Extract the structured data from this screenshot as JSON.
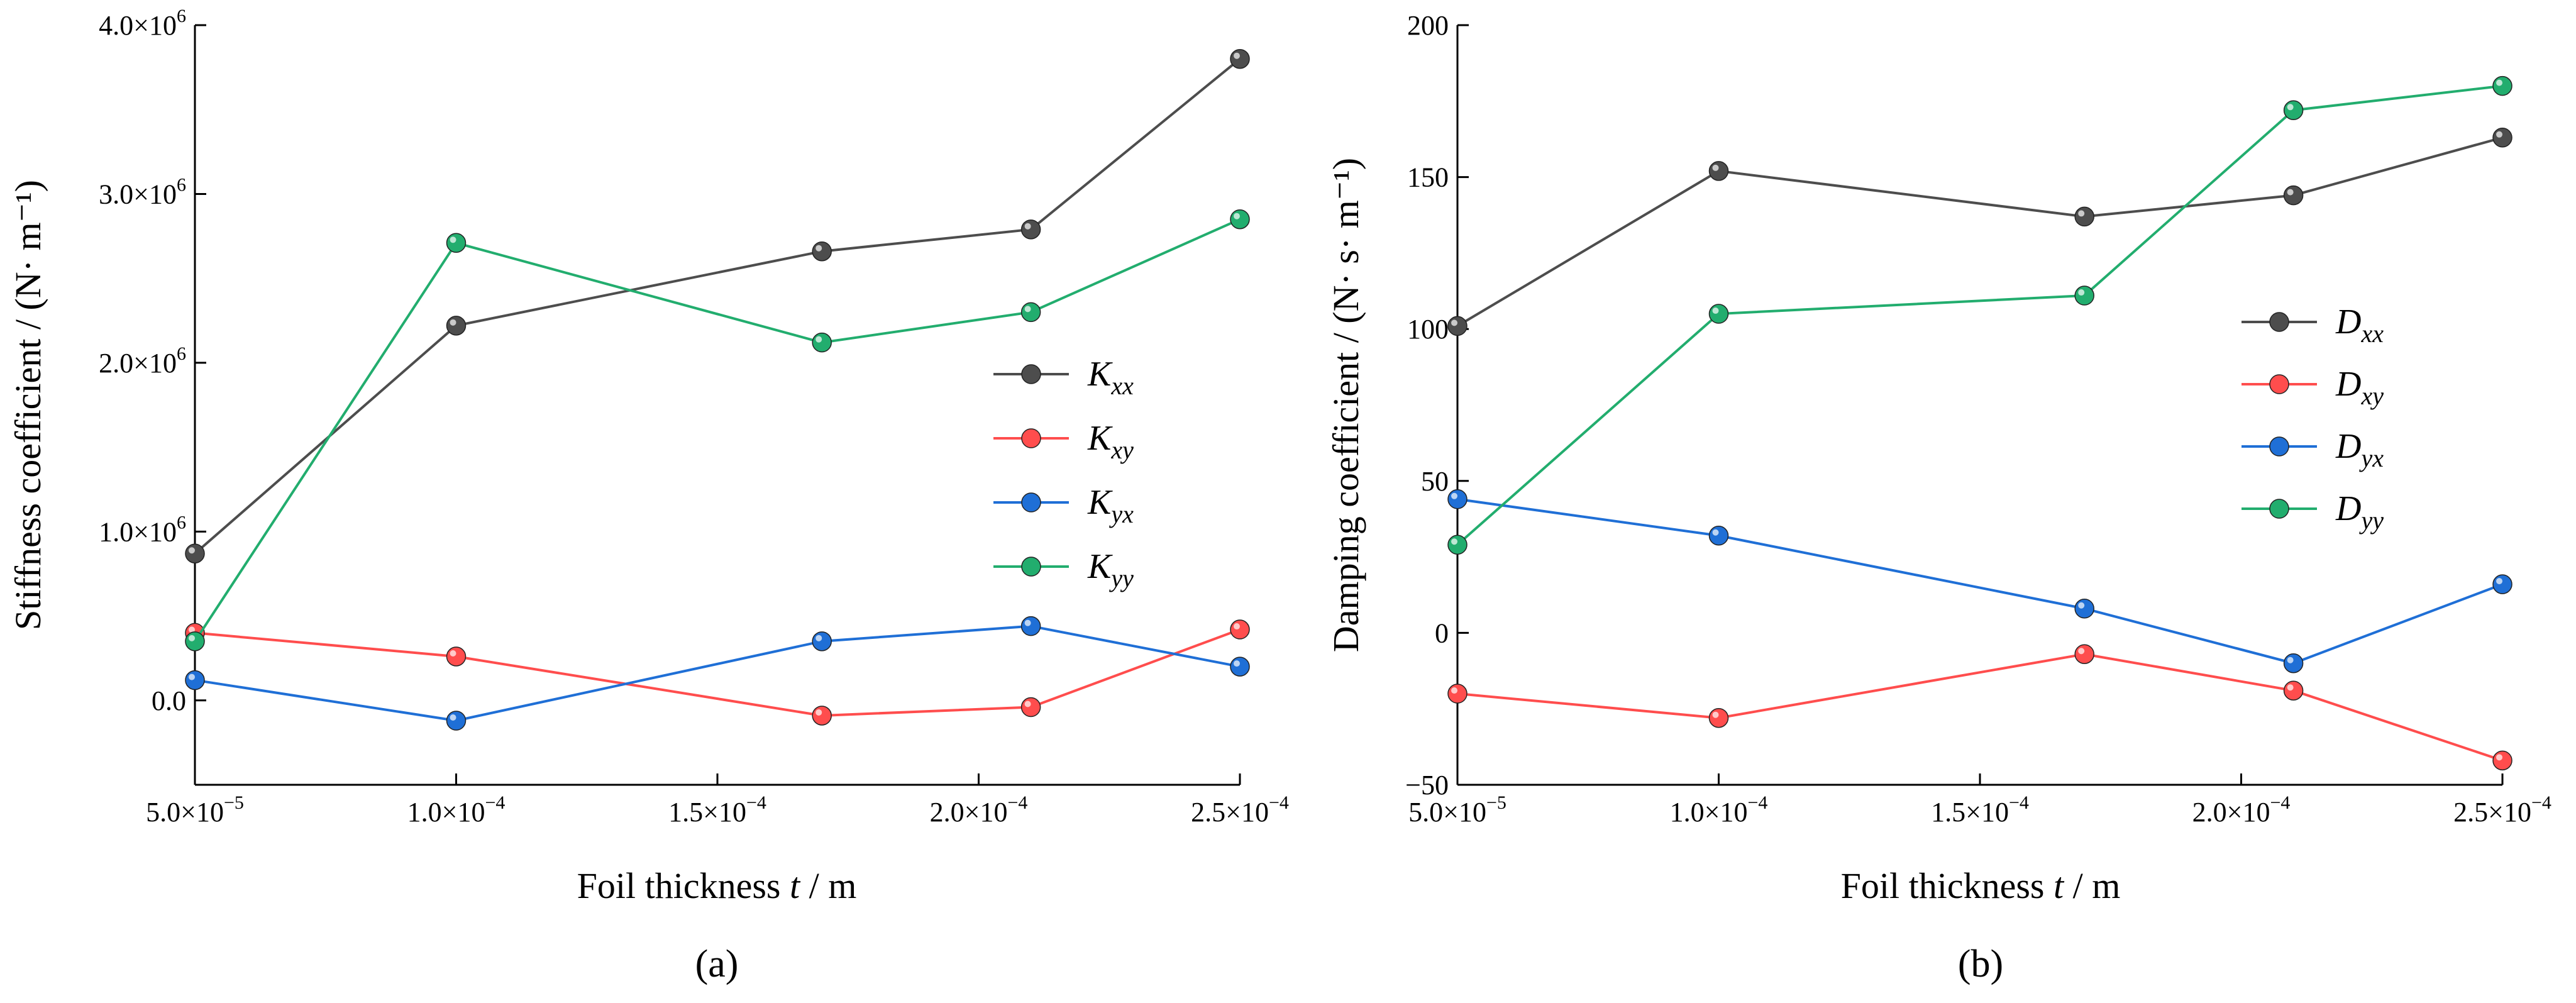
{
  "chart_data": [
    {
      "type": "line",
      "panel_label": "(a)",
      "xlabel": {
        "prefix": "Foil thickness ",
        "var": "t",
        "suffix": " / m"
      },
      "ylabel": "Stiffness coefficient / (N· m⁻¹)",
      "xlim": [
        5e-05,
        0.00025
      ],
      "ylim": [
        -500000,
        4000000
      ],
      "x_ticks": [
        5e-05,
        0.0001,
        0.00015,
        0.0002,
        0.00025
      ],
      "x_tick_labels": [
        {
          "m": "5.0×10",
          "e": "−5"
        },
        {
          "m": "1.0×10",
          "e": "−4"
        },
        {
          "m": "1.5×10",
          "e": "−4"
        },
        {
          "m": "2.0×10",
          "e": "−4"
        },
        {
          "m": "2.5×10",
          "e": "−4"
        }
      ],
      "y_ticks": [
        0,
        1000000,
        2000000,
        3000000,
        4000000
      ],
      "y_tick_labels": [
        {
          "m": "0.0",
          "e": ""
        },
        {
          "m": "1.0×10",
          "e": "6"
        },
        {
          "m": "2.0×10",
          "e": "6"
        },
        {
          "m": "3.0×10",
          "e": "6"
        },
        {
          "m": "4.0×10",
          "e": "6"
        }
      ],
      "legend_position": "center-right",
      "x": [
        5e-05,
        0.0001,
        0.00017,
        0.00021,
        0.00025
      ],
      "series": [
        {
          "name": "Kxx",
          "label_main": "K",
          "label_sub": "xx",
          "color": "#4d4d4d",
          "values": [
            870000,
            2220000,
            2660000,
            2790000,
            3800000
          ]
        },
        {
          "name": "Kxy",
          "label_main": "K",
          "label_sub": "xy",
          "color": "#ff4d4d",
          "values": [
            400000,
            260000,
            -90000,
            -40000,
            420000
          ]
        },
        {
          "name": "Kyx",
          "label_main": "K",
          "label_sub": "yx",
          "color": "#1f6fd6",
          "values": [
            120000,
            -120000,
            350000,
            440000,
            200000
          ]
        },
        {
          "name": "Kyy",
          "label_main": "K",
          "label_sub": "yy",
          "color": "#22ad6e",
          "values": [
            350000,
            2710000,
            2120000,
            2300000,
            2850000
          ]
        }
      ]
    },
    {
      "type": "line",
      "panel_label": "(b)",
      "xlabel": {
        "prefix": "Foil thickness ",
        "var": "t",
        "suffix": " / m"
      },
      "ylabel": "Damping coefficient / (N· s· m⁻¹)",
      "xlim": [
        5e-05,
        0.00025
      ],
      "ylim": [
        -50,
        200
      ],
      "x_ticks": [
        5e-05,
        0.0001,
        0.00015,
        0.0002,
        0.00025
      ],
      "x_tick_labels": [
        {
          "m": "5.0×10",
          "e": "−5"
        },
        {
          "m": "1.0×10",
          "e": "−4"
        },
        {
          "m": "1.5×10",
          "e": "−4"
        },
        {
          "m": "2.0×10",
          "e": "−4"
        },
        {
          "m": "2.5×10",
          "e": "−4"
        }
      ],
      "y_ticks": [
        -50,
        0,
        50,
        100,
        150,
        200
      ],
      "y_tick_labels": [
        {
          "m": "−50",
          "e": ""
        },
        {
          "m": "0",
          "e": ""
        },
        {
          "m": "50",
          "e": ""
        },
        {
          "m": "100",
          "e": ""
        },
        {
          "m": "150",
          "e": ""
        },
        {
          "m": "200",
          "e": ""
        }
      ],
      "legend_position": "center-right",
      "x": [
        5e-05,
        0.0001,
        0.00017,
        0.00021,
        0.00025
      ],
      "series": [
        {
          "name": "Dxx",
          "label_main": "D",
          "label_sub": "xx",
          "color": "#4d4d4d",
          "values": [
            101,
            152,
            137,
            144,
            163
          ]
        },
        {
          "name": "Dxy",
          "label_main": "D",
          "label_sub": "xy",
          "color": "#ff4d4d",
          "values": [
            -20,
            -28,
            -7,
            -19,
            -42
          ]
        },
        {
          "name": "Dyx",
          "label_main": "D",
          "label_sub": "yx",
          "color": "#1f6fd6",
          "values": [
            44,
            32,
            8,
            -10,
            16
          ]
        },
        {
          "name": "Dyy",
          "label_main": "D",
          "label_sub": "yy",
          "color": "#22ad6e",
          "values": [
            29,
            105,
            111,
            172,
            180
          ]
        }
      ]
    }
  ]
}
